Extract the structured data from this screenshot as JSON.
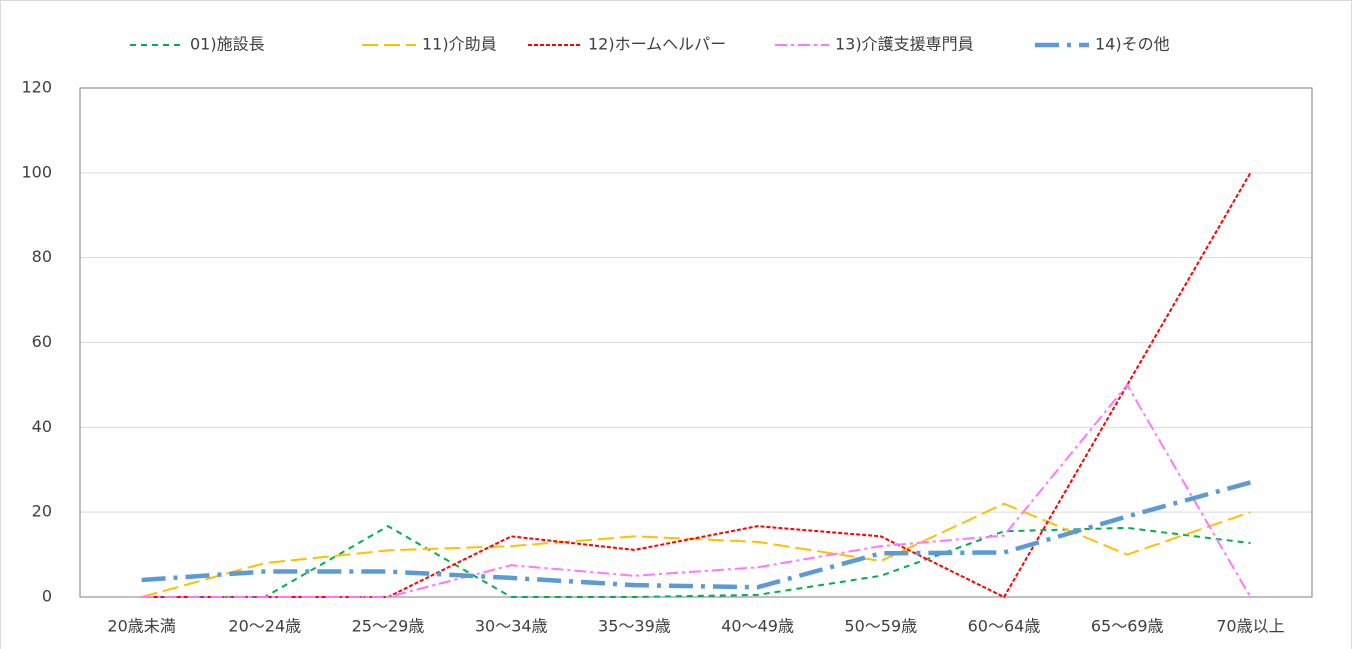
{
  "chart_data": {
    "type": "line",
    "categories": [
      "20歳未満",
      "20〜24歳",
      "25〜29歳",
      "30〜34歳",
      "35〜39歳",
      "40〜49歳",
      "50〜59歳",
      "60〜64歳",
      "65〜69歳",
      "70歳以上"
    ],
    "series": [
      {
        "name": "01)施設長",
        "color": "#00b050",
        "values": [
          0,
          0,
          16.7,
          0,
          0,
          0.5,
          5,
          15.5,
          16.3,
          12.7
        ]
      },
      {
        "name": "11)介助員",
        "color": "#ffc000",
        "values": [
          0,
          8,
          11,
          12,
          14.3,
          13,
          8.5,
          22,
          10,
          20
        ]
      },
      {
        "name": "12)ホームヘルパー",
        "color": "#ff0000",
        "values": [
          0,
          0,
          0,
          14.3,
          11.1,
          16.7,
          14.3,
          0,
          50,
          100
        ]
      },
      {
        "name": "13)介護支援専門員",
        "color": "#ff77ff",
        "values": [
          0,
          0,
          0,
          7.5,
          5,
          7,
          12,
          14.5,
          50,
          0
        ]
      },
      {
        "name": "14)その他",
        "color": "#5b9bd5",
        "values": [
          4,
          6,
          6,
          4.5,
          2.8,
          2.3,
          10.3,
          10.5,
          19,
          27
        ]
      }
    ],
    "ylim": [
      0,
      120
    ],
    "yticks": [
      0,
      20,
      40,
      60,
      80,
      100,
      120
    ],
    "grid": true,
    "legend": "top"
  }
}
